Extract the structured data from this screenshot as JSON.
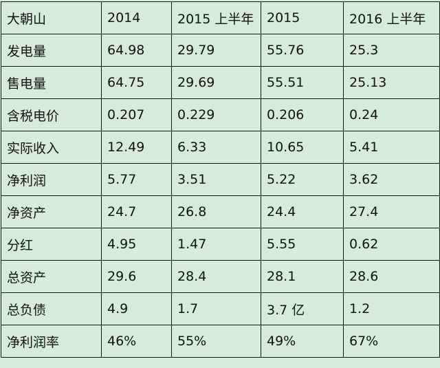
{
  "table": {
    "header": [
      "大朝山",
      "2014",
      "2015 上半年",
      "2015",
      "2016 上半年"
    ],
    "rows": [
      [
        "发电量",
        "64.98",
        "29.79",
        "55.76",
        "25.3"
      ],
      [
        "售电量",
        "64.75",
        "29.69",
        "55.51",
        "25.13"
      ],
      [
        "含税电价",
        "0.207",
        "0.229",
        "0.206",
        "0.24"
      ],
      [
        "实际收入",
        "12.49",
        "6.33",
        "10.65",
        "5.41"
      ],
      [
        "净利润",
        "5.77",
        "3.51",
        "5.22",
        "3.62"
      ],
      [
        "净资产",
        "24.7",
        "26.8",
        "24.4",
        "27.4"
      ],
      [
        "分红",
        "4.95",
        "1.47",
        "5.55",
        "0.62"
      ],
      [
        "总资产",
        "29.6",
        "28.4",
        "28.1",
        "28.6"
      ],
      [
        "总负债",
        "4.9",
        "1.7",
        "3.7 亿",
        "1.2"
      ],
      [
        "净利润率",
        "46%",
        "55%",
        "49%",
        "67%"
      ]
    ]
  }
}
